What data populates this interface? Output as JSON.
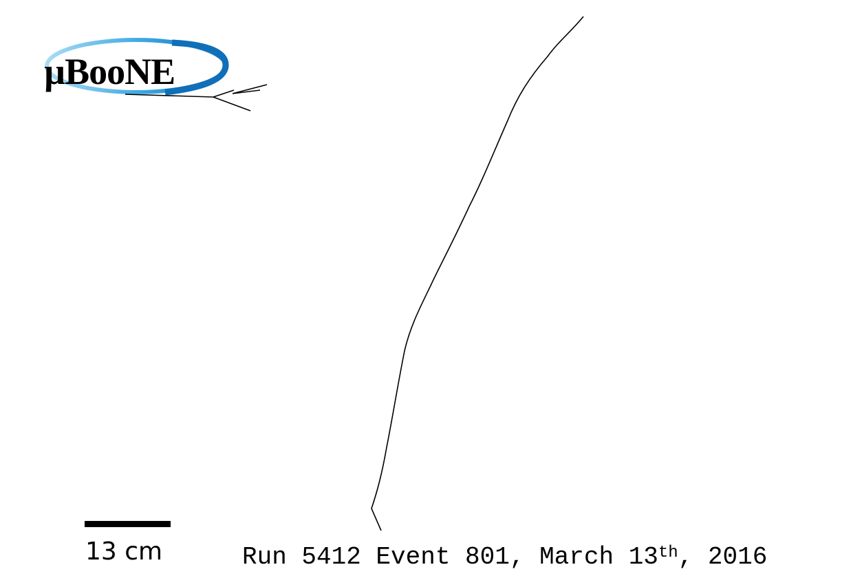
{
  "logo": {
    "text": "µBooNE",
    "ring_color": "#1e8fd8",
    "ring_light_color": "#7cc8f0"
  },
  "scale_bar": {
    "label": "13 cm"
  },
  "caption": {
    "prefix": "Run 5412 Event 801, March 13",
    "superscript": "th",
    "suffix": ", 2016"
  },
  "colors": {
    "background": "#ffffff",
    "track": "#000000"
  }
}
